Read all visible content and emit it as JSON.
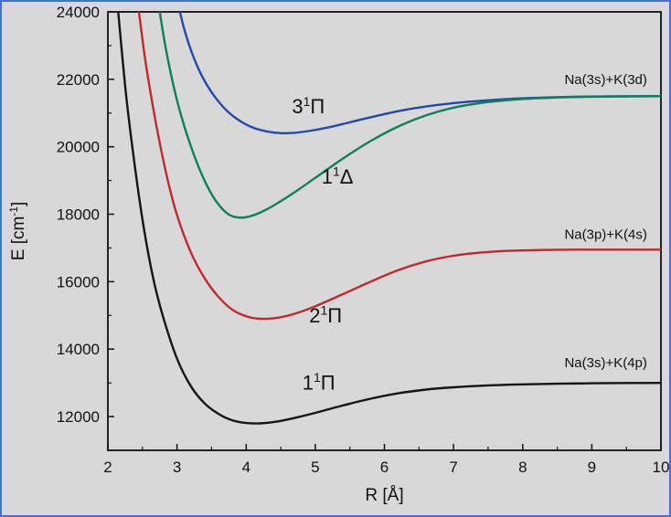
{
  "figure": {
    "background": "#d8d8d8",
    "axis_color": "#111111",
    "border_color": "#4a6ed0"
  },
  "chart_data": {
    "type": "line",
    "title": "",
    "xlabel": "R [Å]",
    "ylabel": "E [cm⁻¹]",
    "xlim": [
      2,
      10
    ],
    "ylim": [
      11000,
      24000
    ],
    "x_ticks": [
      2,
      3,
      4,
      5,
      6,
      7,
      8,
      9,
      10
    ],
    "y_ticks": [
      12000,
      14000,
      16000,
      18000,
      20000,
      22000,
      24000
    ],
    "x_minor_step": 0.5,
    "y_minor_step": 1000,
    "grid": false,
    "legend_position": "none",
    "series": [
      {
        "name": "1¹Π",
        "color": "#141414",
        "asymptote": "Na(3s)+K(4p)",
        "points": [
          [
            2.15,
            24000
          ],
          [
            2.25,
            21800
          ],
          [
            2.35,
            20050
          ],
          [
            2.5,
            17850
          ],
          [
            2.65,
            16150
          ],
          [
            2.8,
            14950
          ],
          [
            3.0,
            13720
          ],
          [
            3.2,
            12900
          ],
          [
            3.4,
            12390
          ],
          [
            3.6,
            12080
          ],
          [
            3.8,
            11890
          ],
          [
            4.0,
            11810
          ],
          [
            4.2,
            11800
          ],
          [
            4.45,
            11855
          ],
          [
            4.7,
            11960
          ],
          [
            5.0,
            12110
          ],
          [
            5.4,
            12330
          ],
          [
            5.8,
            12530
          ],
          [
            6.2,
            12690
          ],
          [
            6.6,
            12800
          ],
          [
            7.0,
            12870
          ],
          [
            7.5,
            12925
          ],
          [
            8.0,
            12955
          ],
          [
            8.5,
            12975
          ],
          [
            9.0,
            12988
          ],
          [
            9.5,
            12995
          ],
          [
            10.0,
            13000
          ]
        ]
      },
      {
        "name": "2¹Π",
        "color": "#c0282d",
        "asymptote": "Na(3p)+K(4s)",
        "points": [
          [
            2.45,
            24000
          ],
          [
            2.55,
            22450
          ],
          [
            2.7,
            20650
          ],
          [
            2.85,
            19150
          ],
          [
            3.0,
            17980
          ],
          [
            3.2,
            16870
          ],
          [
            3.4,
            16100
          ],
          [
            3.6,
            15550
          ],
          [
            3.8,
            15170
          ],
          [
            4.0,
            14975
          ],
          [
            4.2,
            14900
          ],
          [
            4.45,
            14930
          ],
          [
            4.7,
            15050
          ],
          [
            5.0,
            15270
          ],
          [
            5.4,
            15630
          ],
          [
            5.8,
            16000
          ],
          [
            6.2,
            16340
          ],
          [
            6.6,
            16600
          ],
          [
            7.0,
            16770
          ],
          [
            7.4,
            16865
          ],
          [
            7.8,
            16915
          ],
          [
            8.2,
            16938
          ],
          [
            8.6,
            16948
          ],
          [
            9.0,
            16950
          ],
          [
            9.5,
            16950
          ],
          [
            10.0,
            16950
          ]
        ]
      },
      {
        "name": "3¹Π",
        "color": "#2349a8",
        "asymptote": "Na(3s)+K(3d)",
        "points": [
          [
            3.04,
            24000
          ],
          [
            3.12,
            23380
          ],
          [
            3.22,
            22760
          ],
          [
            3.35,
            22140
          ],
          [
            3.5,
            21620
          ],
          [
            3.7,
            21110
          ],
          [
            3.9,
            20780
          ],
          [
            4.1,
            20565
          ],
          [
            4.3,
            20455
          ],
          [
            4.5,
            20405
          ],
          [
            4.7,
            20415
          ],
          [
            4.9,
            20465
          ],
          [
            5.2,
            20580
          ],
          [
            5.5,
            20725
          ],
          [
            5.8,
            20875
          ],
          [
            6.2,
            21055
          ],
          [
            6.6,
            21195
          ],
          [
            7.0,
            21295
          ],
          [
            7.4,
            21365
          ],
          [
            7.8,
            21418
          ],
          [
            8.2,
            21452
          ],
          [
            8.6,
            21476
          ],
          [
            9.0,
            21489
          ],
          [
            9.5,
            21497
          ],
          [
            10.0,
            21500
          ]
        ]
      },
      {
        "name": "1¹Δ",
        "color": "#0e7f5c",
        "asymptote": "Na(3s)+K(3d)",
        "points": [
          [
            2.75,
            24000
          ],
          [
            2.85,
            22780
          ],
          [
            3.0,
            21380
          ],
          [
            3.15,
            20320
          ],
          [
            3.3,
            19470
          ],
          [
            3.45,
            18780
          ],
          [
            3.6,
            18290
          ],
          [
            3.75,
            17990
          ],
          [
            3.9,
            17900
          ],
          [
            4.05,
            17935
          ],
          [
            4.2,
            18045
          ],
          [
            4.4,
            18260
          ],
          [
            4.7,
            18650
          ],
          [
            5.0,
            19080
          ],
          [
            5.4,
            19650
          ],
          [
            5.8,
            20170
          ],
          [
            6.2,
            20600
          ],
          [
            6.6,
            20930
          ],
          [
            7.0,
            21160
          ],
          [
            7.4,
            21300
          ],
          [
            7.8,
            21385
          ],
          [
            8.2,
            21437
          ],
          [
            8.6,
            21467
          ],
          [
            9.0,
            21485
          ],
          [
            9.5,
            21496
          ],
          [
            10.0,
            21500
          ]
        ]
      }
    ],
    "curve_labels": [
      {
        "text": "3¹Π",
        "x": 4.9,
        "y": 21180,
        "size": 22
      },
      {
        "text": "1¹Δ",
        "x": 5.32,
        "y": 19100,
        "size": 22
      },
      {
        "text": "2¹Π",
        "x": 5.15,
        "y": 14980,
        "size": 22
      },
      {
        "text": "1¹Π",
        "x": 5.05,
        "y": 12990,
        "size": 22
      }
    ],
    "asymptote_labels": [
      {
        "text": "Na(3s)+K(3d)",
        "x": 9.8,
        "y": 21990,
        "size": 15
      },
      {
        "text": "Na(3p)+K(4s)",
        "x": 9.8,
        "y": 17400,
        "size": 15
      },
      {
        "text": "Na(3s)+K(4p)",
        "x": 9.8,
        "y": 13600,
        "size": 15
      }
    ]
  }
}
